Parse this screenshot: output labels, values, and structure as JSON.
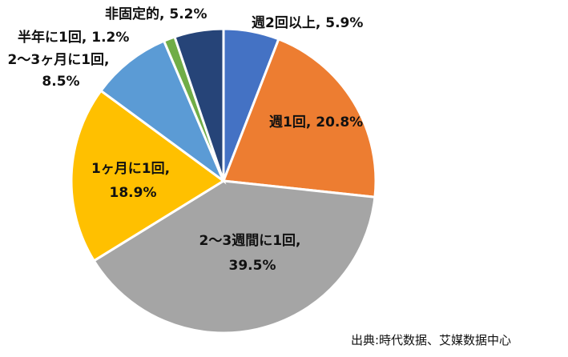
{
  "chart_data": {
    "type": "pie",
    "start_angle_deg": 0,
    "direction": "clockwise",
    "categories": [
      "週2回以上",
      "週1回",
      "2～3週間に1回",
      "1ヶ月に1回",
      "2～3ヶ月に1回",
      "半年に1回",
      "非固定的"
    ],
    "values": [
      5.9,
      20.8,
      39.5,
      18.9,
      8.5,
      1.2,
      5.2
    ],
    "labels": [
      {
        "name": "週2回以上",
        "value": "5.9%"
      },
      {
        "name": "週1回",
        "value": "20.8%"
      },
      {
        "name": "2～3週間に1回",
        "value": "39.5%"
      },
      {
        "name": "1ヶ月に1回",
        "value": "18.9%"
      },
      {
        "name": "2～3ヶ月に1回",
        "value": "8.5%"
      },
      {
        "name": "半年に1回",
        "value": "1.2%"
      },
      {
        "name": "非固定的",
        "value": "5.2%"
      }
    ],
    "colors": [
      "#4472C4",
      "#ED7D31",
      "#A5A5A5",
      "#FFC000",
      "#5B9BD5",
      "#70AD47",
      "#264478"
    ]
  },
  "source_note": "出典:時代数据、艾媒数据中心"
}
